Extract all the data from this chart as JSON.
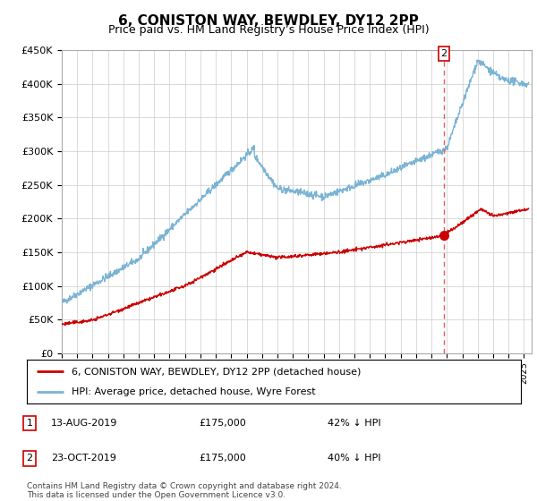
{
  "title": "6, CONISTON WAY, BEWDLEY, DY12 2PP",
  "subtitle": "Price paid vs. HM Land Registry’s House Price Index (HPI)",
  "ylim": [
    0,
    450000
  ],
  "yticks": [
    0,
    50000,
    100000,
    150000,
    200000,
    250000,
    300000,
    350000,
    400000,
    450000
  ],
  "ytick_labels": [
    "£0",
    "£50K",
    "£100K",
    "£150K",
    "£200K",
    "£250K",
    "£300K",
    "£350K",
    "£400K",
    "£450K"
  ],
  "xlim_start": 1995.0,
  "xlim_end": 2025.5,
  "line_color_hpi": "#7ab3d4",
  "line_color_property": "#cc0000",
  "marker_color": "#cc0000",
  "transaction_line_color": "#e06060",
  "transactions": [
    {
      "label": "1",
      "date": "13-AUG-2019",
      "price": 175000,
      "pct": "42% ↓ HPI",
      "x_year": 2019.617,
      "show_vline": false
    },
    {
      "label": "2",
      "date": "23-OCT-2019",
      "price": 175000,
      "pct": "40% ↓ HPI",
      "x_year": 2019.808,
      "show_vline": true
    }
  ],
  "legend_entries": [
    "6, CONISTON WAY, BEWDLEY, DY12 2PP (detached house)",
    "HPI: Average price, detached house, Wyre Forest"
  ],
  "footnote": "Contains HM Land Registry data © Crown copyright and database right 2024.\nThis data is licensed under the Open Government Licence v3.0.",
  "title_fontsize": 11,
  "subtitle_fontsize": 9,
  "axis_fontsize": 8,
  "background_color": "#ffffff",
  "grid_color": "#cccccc"
}
